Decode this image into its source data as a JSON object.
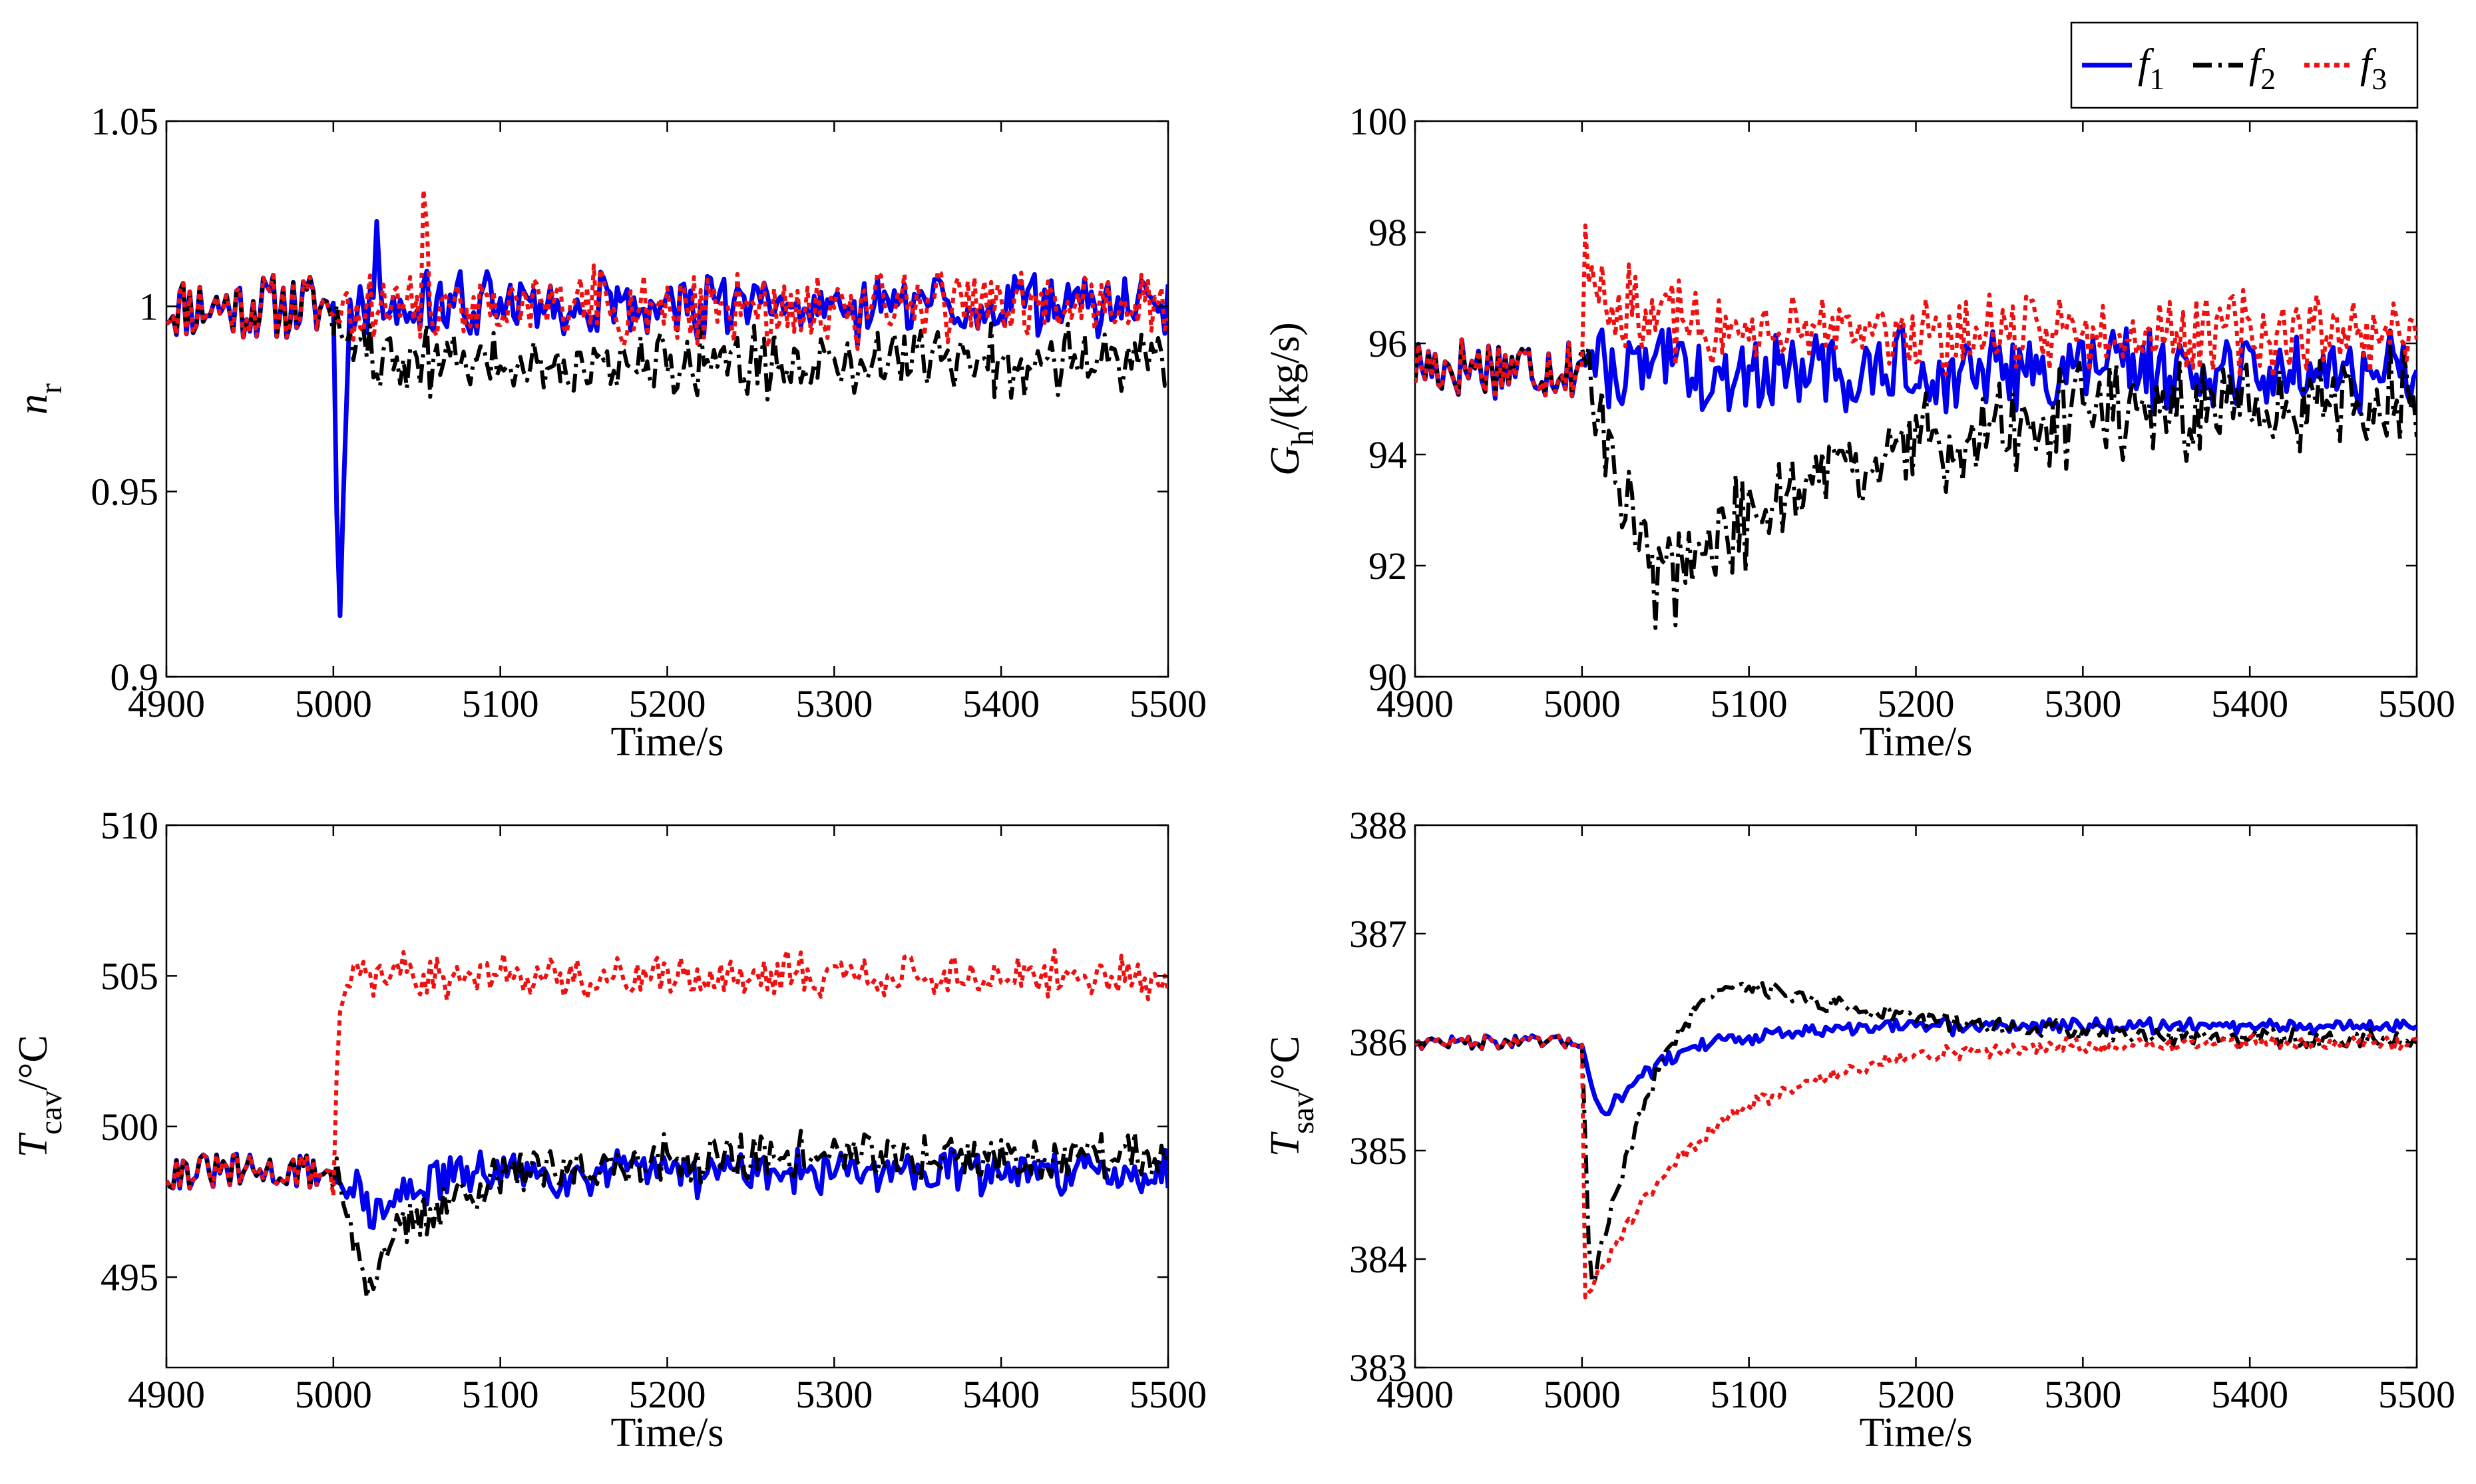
{
  "legend": [
    {
      "name": "f",
      "sub": "1",
      "color": "#0000ee",
      "dash": "solid"
    },
    {
      "name": "f",
      "sub": "2",
      "color": "#000000",
      "dash": "dashdot"
    },
    {
      "name": "f",
      "sub": "3",
      "color": "#ee1111",
      "dash": "dotted"
    }
  ],
  "chart_data": [
    {
      "type": "line",
      "id": "nr",
      "xlabel": "Time/s",
      "ylabel": {
        "main": "n",
        "sub": "r",
        "suffix": ""
      },
      "xlim": [
        4900,
        5500
      ],
      "ylim": [
        0.9,
        1.05
      ],
      "xticks": [
        4900,
        5000,
        5100,
        5200,
        5300,
        5400,
        5500
      ],
      "yticks": [
        0.9,
        0.95,
        1,
        1.05
      ],
      "ytick_labels": [
        "0.9",
        "0.95",
        "1",
        "1.05"
      ],
      "series": [
        {
          "name": "f1",
          "model": {
            "base": 1.0,
            "noise": 0.009,
            "pre_noise": 0.009,
            "seed": 3,
            "shared_seed": 11,
            "features": [
              {
                "type": "spike",
                "t": 5000,
                "to": 0.91,
                "t_min": 5003,
                "t_back": 5010
              },
              {
                "type": "spike",
                "t": 5022,
                "to": 1.02,
                "t_min": 5026,
                "t_back": 5030
              }
            ]
          }
        },
        {
          "name": "f2",
          "model": {
            "base": 1.0,
            "noise": 0.009,
            "pre_noise": 0.009,
            "seed": 5,
            "shared_seed": 11,
            "features": [
              {
                "type": "step",
                "t": 5002,
                "to": 0.985,
                "tau": 15
              }
            ]
          }
        },
        {
          "name": "f3",
          "model": {
            "base": 1.0,
            "noise": 0.01,
            "pre_noise": 0.009,
            "seed": 7,
            "shared_seed": 11,
            "features": [
              {
                "type": "spike",
                "t": 5052,
                "to": 1.033,
                "t_min": 5054,
                "t_back": 5057
              }
            ]
          }
        }
      ]
    },
    {
      "type": "line",
      "id": "gh",
      "xlabel": "Time/s",
      "ylabel": {
        "main": "G",
        "sub": "h",
        "suffix": "/(kg/s)"
      },
      "xlim": [
        4900,
        5500
      ],
      "ylim": [
        90,
        100
      ],
      "xticks": [
        4900,
        5000,
        5100,
        5200,
        5300,
        5400,
        5500
      ],
      "yticks": [
        90,
        92,
        94,
        96,
        98,
        100
      ],
      "ytick_labels": [
        "90",
        "92",
        "94",
        "96",
        "98",
        "100"
      ],
      "series": [
        {
          "name": "f1",
          "model": {
            "base": 95.6,
            "noise": 0.7,
            "pre_noise": 0.6,
            "seed": 13,
            "shared_seed": 17,
            "features": [
              {
                "type": "step",
                "t": 5005,
                "to": 95.5,
                "tau": 10
              }
            ]
          }
        },
        {
          "name": "f2",
          "model": {
            "base": 95.6,
            "noise": 0.9,
            "pre_noise": 0.6,
            "seed": 19,
            "shared_seed": 17,
            "features": [
              {
                "type": "dip",
                "t": 5000,
                "min": 91.6,
                "t_min": 5045,
                "to": 95.0,
                "tau": 110
              }
            ]
          }
        },
        {
          "name": "f3",
          "model": {
            "base": 95.6,
            "noise": 0.7,
            "pre_noise": 0.6,
            "seed": 23,
            "shared_seed": 17,
            "features": [
              {
                "type": "bump",
                "t": 5000,
                "peak": 97.6,
                "to": 96.2,
                "tau": 25
              }
            ]
          }
        }
      ]
    },
    {
      "type": "line",
      "id": "tcav",
      "xlabel": "Time/s",
      "ylabel": {
        "main": "T",
        "sub": "cav",
        "suffix": "/°C"
      },
      "xlim": [
        4900,
        5500
      ],
      "ylim": [
        492,
        510
      ],
      "xticks": [
        4900,
        5000,
        5100,
        5200,
        5300,
        5400,
        5500
      ],
      "yticks": [
        495,
        500,
        505,
        510
      ],
      "ytick_labels": [
        "495",
        "500",
        "505",
        "510"
      ],
      "series": [
        {
          "name": "f1",
          "model": {
            "base": 498.5,
            "noise": 0.75,
            "pre_noise": 0.6,
            "seed": 29,
            "shared_seed": 31,
            "features": [
              {
                "type": "dip",
                "t": 5000,
                "min": 497.0,
                "t_min": 5030,
                "to": 498.5,
                "tau": 20
              }
            ]
          }
        },
        {
          "name": "f2",
          "model": {
            "base": 498.5,
            "noise": 0.8,
            "pre_noise": 0.6,
            "seed": 37,
            "shared_seed": 31,
            "features": [
              {
                "type": "dip",
                "t": 5000,
                "min": 495.0,
                "t_min": 5020,
                "to": 499.0,
                "tau": 50
              }
            ]
          }
        },
        {
          "name": "f3",
          "model": {
            "base": 498.5,
            "noise": 0.75,
            "pre_noise": 0.6,
            "seed": 41,
            "shared_seed": 31,
            "features": [
              {
                "type": "step",
                "t": 5000,
                "to": 505.0,
                "tau": 3
              }
            ]
          }
        }
      ]
    },
    {
      "type": "line",
      "id": "tsav",
      "xlabel": "Time/s",
      "ylabel": {
        "main": "T",
        "sub": "sav",
        "suffix": "/°C"
      },
      "xlim": [
        4900,
        5500
      ],
      "ylim": [
        383,
        388
      ],
      "xticks": [
        4900,
        5000,
        5100,
        5200,
        5300,
        5400,
        5500
      ],
      "yticks": [
        383,
        384,
        385,
        386,
        387,
        388
      ],
      "ytick_labels": [
        "383",
        "384",
        "385",
        "386",
        "387",
        "388"
      ],
      "series": [
        {
          "name": "f1",
          "model": {
            "base": 386.0,
            "noise": 0.07,
            "pre_noise": 0.06,
            "seed": 43,
            "shared_seed": 47,
            "features": [
              {
                "type": "dip",
                "t": 5000,
                "min": 385.3,
                "t_min": 5012,
                "to": 386.15,
                "tau": 40
              }
            ]
          }
        },
        {
          "name": "f2",
          "model": {
            "base": 386.0,
            "noise": 0.09,
            "pre_noise": 0.06,
            "seed": 53,
            "shared_seed": 47,
            "features": [
              {
                "type": "dipover",
                "t": 5000,
                "min": 383.7,
                "t_min": 5005,
                "peak": 386.55,
                "t_peak": 5100,
                "to": 386.0,
                "tau": 110
              }
            ]
          }
        },
        {
          "name": "f3",
          "model": {
            "base": 386.0,
            "noise": 0.07,
            "pre_noise": 0.06,
            "seed": 59,
            "shared_seed": 47,
            "features": [
              {
                "type": "dip",
                "t": 5000,
                "min": 383.6,
                "t_min": 5002,
                "to": 386.0,
                "tau": 70
              }
            ]
          }
        }
      ]
    }
  ]
}
